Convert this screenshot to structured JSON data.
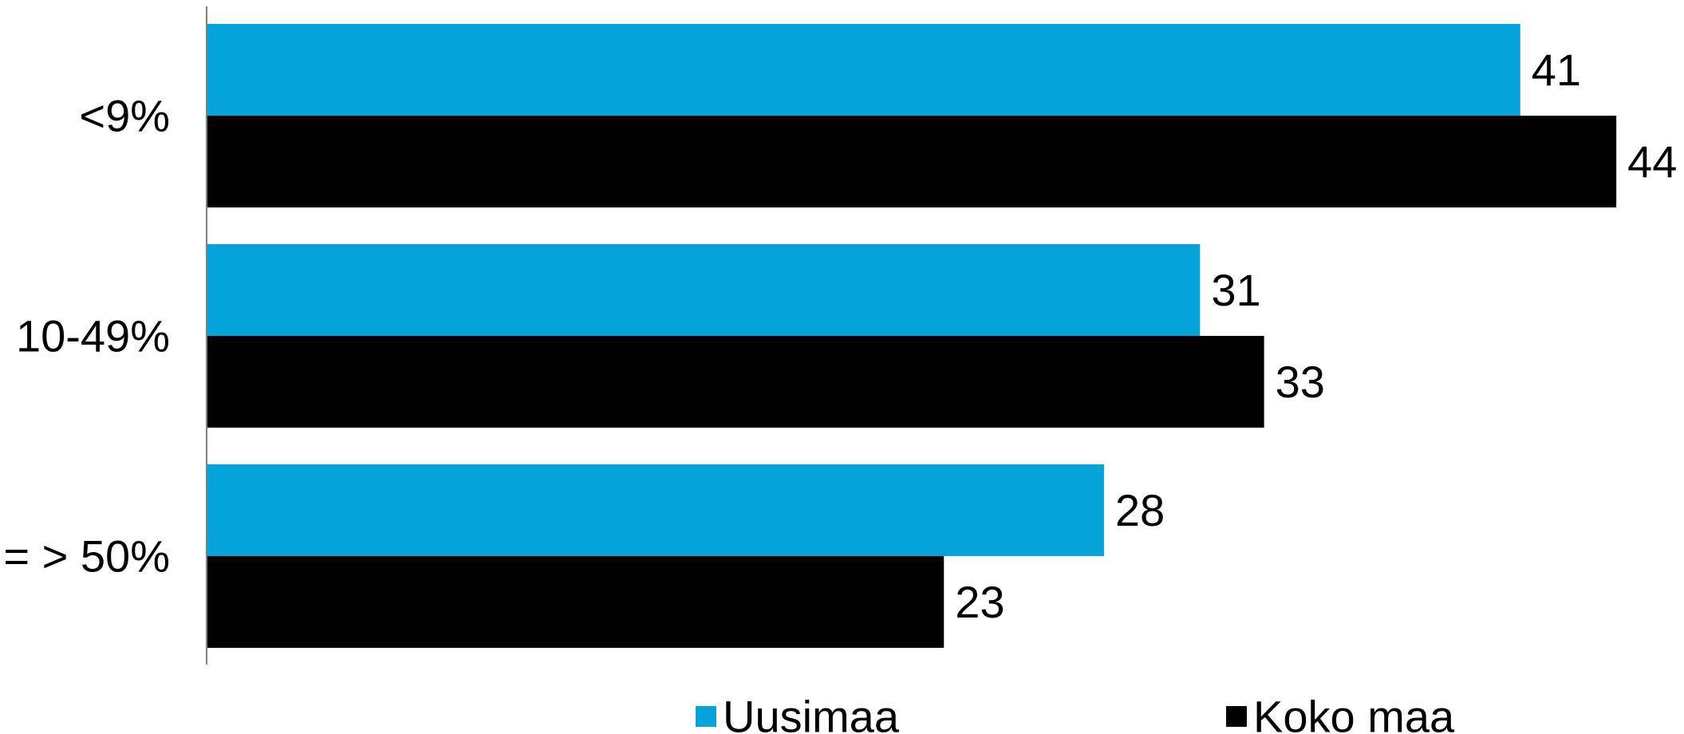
{
  "chart_data": {
    "type": "bar",
    "orientation": "horizontal",
    "categories": [
      "<9%",
      "10-49%",
      "= > 50%"
    ],
    "series": [
      {
        "name": "Uusimaa",
        "color": "#04A3DA",
        "values": [
          41,
          31,
          28
        ]
      },
      {
        "name": "Koko maa",
        "color": "#000000",
        "values": [
          44,
          33,
          23
        ]
      }
    ],
    "xlim": [
      0,
      50
    ],
    "grid": false,
    "data_labels": true,
    "legend_position": "bottom"
  }
}
